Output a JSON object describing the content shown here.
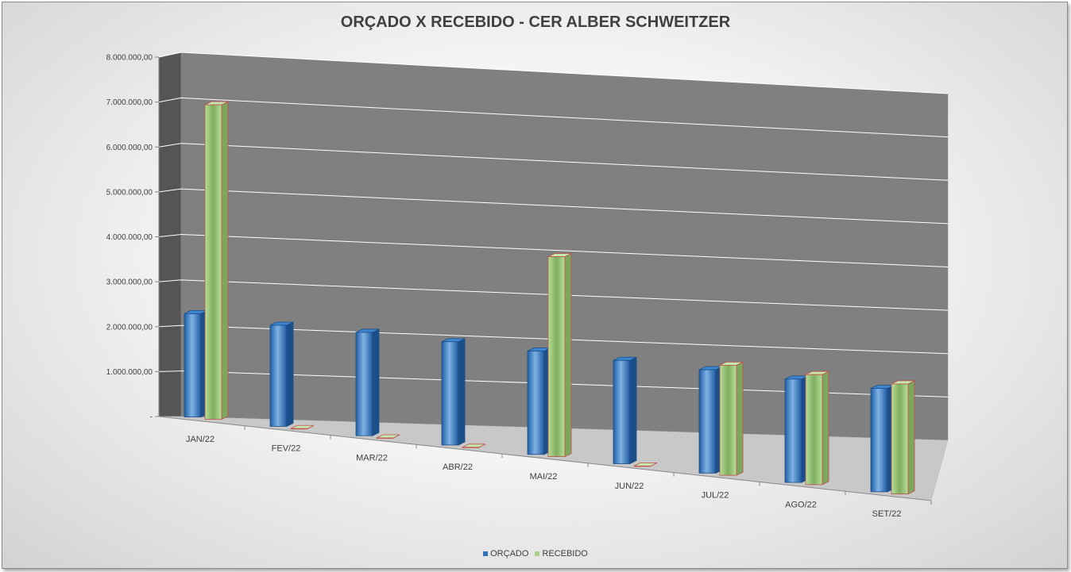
{
  "chart_data": {
    "type": "bar",
    "title": "ORÇADO X RECEBIDO - CER ALBER SCHWEITZER",
    "categories": [
      "JAN/22",
      "FEV/22",
      "MAR/22",
      "ABR/22",
      "MAI/22",
      "JUN/22",
      "JUL/22",
      "AGO/22",
      "SET/22"
    ],
    "series": [
      {
        "name": "ORÇADO",
        "color": "#2e75b6",
        "values": [
          2300000,
          2250000,
          2300000,
          2300000,
          2300000,
          2300000,
          2300000,
          2300000,
          2300000
        ]
      },
      {
        "name": "RECEBIDO",
        "color": "#a9d18e",
        "values": [
          7000000,
          0,
          0,
          0,
          4450000,
          0,
          2450000,
          2450000,
          2450000
        ]
      }
    ],
    "y_ticks": [
      "-",
      "1.000.000,00",
      "2.000.000,00",
      "3.000.000,00",
      "4.000.000,00",
      "5.000.000,00",
      "6.000.000,00",
      "7.000.000,00",
      "8.000.000,00"
    ],
    "ylim": [
      0,
      8000000
    ],
    "grid": true,
    "legend": "bottom"
  }
}
